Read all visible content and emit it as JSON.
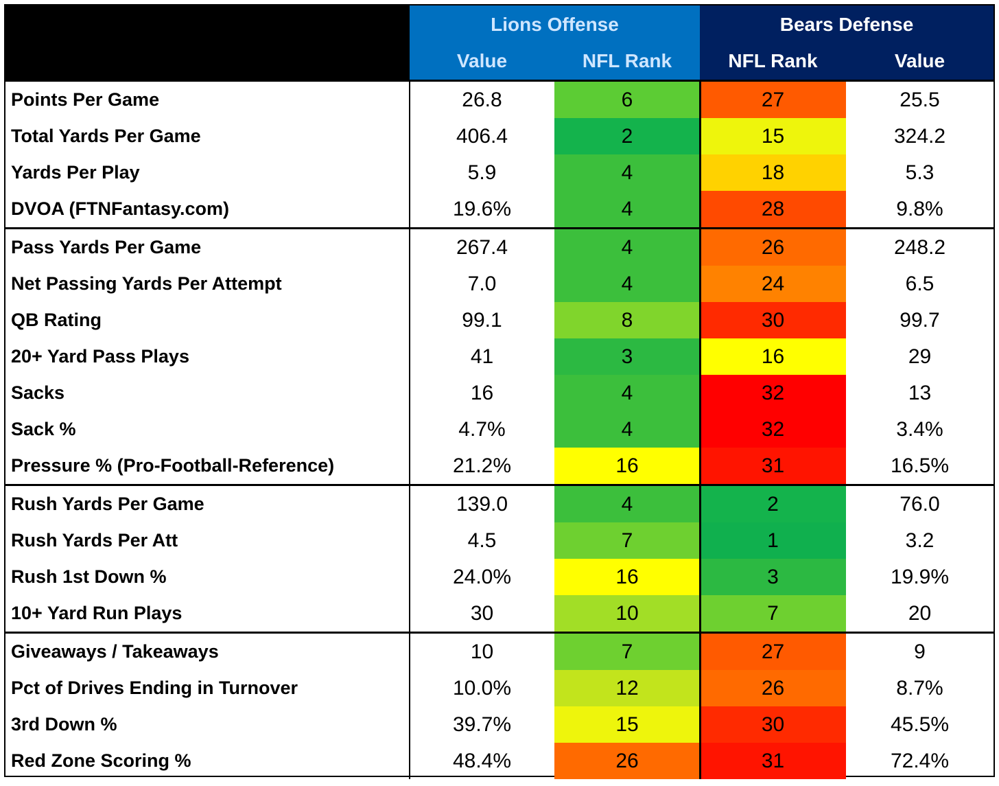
{
  "header": {
    "groups": [
      "Lions Offense",
      "Bears Defense"
    ],
    "columns": [
      "Value",
      "NFL Rank",
      "NFL Rank",
      "Value"
    ]
  },
  "sections": [
    {
      "rows": [
        {
          "label": "Points Per Game",
          "off_value": "26.8",
          "off_rank": "6",
          "off_color": "#5ccc34",
          "def_rank": "27",
          "def_color": "#ff5a00",
          "def_value": "25.5"
        },
        {
          "label": "Total Yards Per Game",
          "off_value": "406.4",
          "off_rank": "2",
          "off_color": "#14b34c",
          "def_rank": "15",
          "def_color": "#eef50c",
          "def_value": "324.2"
        },
        {
          "label": "Yards Per Play",
          "off_value": "5.9",
          "off_rank": "4",
          "off_color": "#3cbf3c",
          "def_rank": "18",
          "def_color": "#ffd200",
          "def_value": "5.3"
        },
        {
          "label": "DVOA (FTNFantasy.com)",
          "off_value": "19.6%",
          "off_rank": "4",
          "off_color": "#3cbf3c",
          "def_rank": "28",
          "def_color": "#ff4a00",
          "def_value": "9.8%"
        }
      ]
    },
    {
      "rows": [
        {
          "label": "Pass Yards Per Game",
          "off_value": "267.4",
          "off_rank": "4",
          "off_color": "#3cbf3c",
          "def_rank": "26",
          "def_color": "#ff6a00",
          "def_value": "248.2"
        },
        {
          "label": "Net Passing Yards Per Attempt",
          "off_value": "7.0",
          "off_rank": "4",
          "off_color": "#3cbf3c",
          "def_rank": "24",
          "def_color": "#ff8200",
          "def_value": "6.5"
        },
        {
          "label": "QB Rating",
          "off_value": "99.1",
          "off_rank": "8",
          "off_color": "#80d52c",
          "def_rank": "30",
          "def_color": "#ff2a00",
          "def_value": "99.7"
        },
        {
          "label": "20+ Yard Pass Plays",
          "off_value": "41",
          "off_rank": "3",
          "off_color": "#2cb942",
          "def_rank": "16",
          "def_color": "#ffff00",
          "def_value": "29"
        },
        {
          "label": "Sacks",
          "off_value": "16",
          "off_rank": "4",
          "off_color": "#3cbf3c",
          "def_rank": "32",
          "def_color": "#ff0000",
          "def_value": "13"
        },
        {
          "label": "Sack %",
          "off_value": "4.7%",
          "off_rank": "4",
          "off_color": "#3cbf3c",
          "def_rank": "32",
          "def_color": "#ff0000",
          "def_value": "3.4%"
        },
        {
          "label": "Pressure % (Pro-Football-Reference)",
          "off_value": "21.2%",
          "off_rank": "16",
          "off_color": "#ffff00",
          "def_rank": "31",
          "def_color": "#ff1400",
          "def_value": "16.5%"
        }
      ]
    },
    {
      "rows": [
        {
          "label": "Rush Yards Per Game",
          "off_value": "139.0",
          "off_rank": "4",
          "off_color": "#3cbf3c",
          "def_rank": "2",
          "def_color": "#14b34c",
          "def_value": "76.0"
        },
        {
          "label": "Rush Yards Per Att",
          "off_value": "4.5",
          "off_rank": "7",
          "off_color": "#6ed030",
          "def_rank": "1",
          "def_color": "#10b04e",
          "def_value": "3.2"
        },
        {
          "label": "Rush 1st Down %",
          "off_value": "24.0%",
          "off_rank": "16",
          "off_color": "#ffff00",
          "def_rank": "3",
          "def_color": "#2cb942",
          "def_value": "19.9%"
        },
        {
          "label": "10+ Yard Run Plays",
          "off_value": "30",
          "off_rank": "10",
          "off_color": "#a2de26",
          "def_rank": "7",
          "def_color": "#6ed030",
          "def_value": "20"
        }
      ]
    },
    {
      "rows": [
        {
          "label": "Giveaways / Takeaways",
          "off_value": "10",
          "off_rank": "7",
          "off_color": "#6ed030",
          "def_rank": "27",
          "def_color": "#ff5a00",
          "def_value": "9"
        },
        {
          "label": "Pct of Drives Ending in Turnover",
          "off_value": "10.0%",
          "off_rank": "12",
          "off_color": "#c2e41c",
          "def_rank": "26",
          "def_color": "#ff6a00",
          "def_value": "8.7%"
        },
        {
          "label": "3rd Down %",
          "off_value": "39.7%",
          "off_rank": "15",
          "off_color": "#eef50c",
          "def_rank": "30",
          "def_color": "#ff2a00",
          "def_value": "45.5%"
        },
        {
          "label": "Red Zone Scoring %",
          "off_value": "48.4%",
          "off_rank": "26",
          "off_color": "#ff6a00",
          "def_rank": "31",
          "def_color": "#ff1400",
          "def_value": "72.4%"
        }
      ]
    }
  ]
}
